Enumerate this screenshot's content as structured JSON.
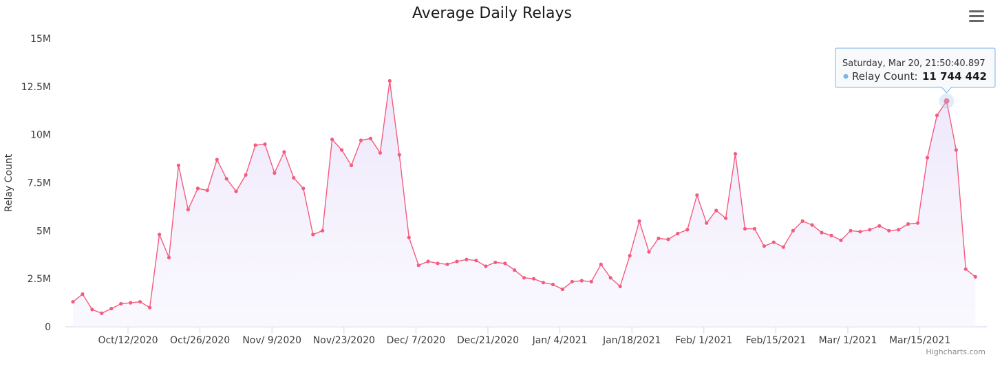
{
  "chart_data": {
    "type": "area",
    "title": "Average Daily Relays",
    "xlabel": "",
    "ylabel": "Relay Count",
    "ylim": [
      0,
      15000000
    ],
    "y_ticks": [
      0,
      2500000,
      5000000,
      7500000,
      10000000,
      12500000,
      15000000
    ],
    "y_tick_labels": [
      "0",
      "2.5M",
      "5M",
      "7.5M",
      "10M",
      "12.5M",
      "15M"
    ],
    "x_tick_labels": [
      "Oct/12/2020",
      "Oct/26/2020",
      "Nov/ 9/2020",
      "Nov/23/2020",
      "Dec/ 7/2020",
      "Dec/21/2020",
      "Jan/ 4/2021",
      "Jan/18/2021",
      "Feb/ 1/2021",
      "Feb/15/2021",
      "Mar/ 1/2021",
      "Mar/15/2021"
    ],
    "grid": false,
    "line_color": "#f45b7d",
    "fill_color": "#efe9fb",
    "series": [
      {
        "name": "Relay Count",
        "values": [
          1300000,
          1700000,
          900000,
          700000,
          950000,
          1200000,
          1250000,
          1300000,
          1000000,
          4800000,
          3600000,
          8400000,
          6100000,
          7200000,
          7100000,
          8700000,
          7700000,
          7050000,
          7900000,
          9450000,
          9500000,
          8000000,
          9100000,
          7750000,
          7200000,
          4800000,
          5000000,
          9750000,
          9200000,
          8400000,
          9700000,
          9800000,
          9050000,
          12800000,
          8950000,
          4650000,
          3200000,
          3400000,
          3300000,
          3250000,
          3400000,
          3500000,
          3450000,
          3150000,
          3350000,
          3300000,
          2950000,
          2550000,
          2500000,
          2300000,
          2200000,
          1950000,
          2350000,
          2400000,
          2350000,
          3250000,
          2550000,
          2100000,
          3700000,
          5500000,
          3900000,
          4600000,
          4550000,
          4850000,
          5050000,
          6850000,
          5400000,
          6050000,
          5650000,
          9000000,
          5100000,
          5100000,
          4200000,
          4400000,
          4150000,
          5000000,
          5500000,
          5300000,
          4900000,
          4750000,
          4500000,
          5000000,
          4950000,
          5050000,
          5250000,
          5000000,
          5050000,
          5350000,
          5400000,
          8800000,
          11000000,
          11744442,
          9200000,
          3000000,
          2600000
        ]
      }
    ],
    "highlight_index": 91
  },
  "tooltip": {
    "date": "Saturday, Mar 20, 21:50:40.897",
    "label": "Relay Count:",
    "value": "11 744 442"
  },
  "credits": "Highcharts.com",
  "icons": {
    "menu": "hamburger-menu-icon"
  }
}
